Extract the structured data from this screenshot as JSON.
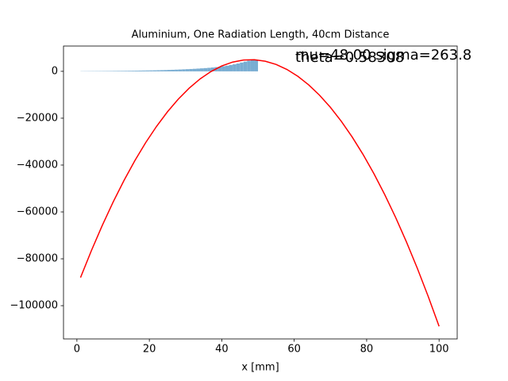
{
  "chart_data": {
    "type": "histogram+line",
    "title": "Aluminium, One Radiation Length, 40cm Distance",
    "xlabel": "x [mm]",
    "xlim": [
      -3.7,
      105
    ],
    "ylim": [
      -114200,
      10800
    ],
    "xticks": [
      0,
      20,
      40,
      60,
      80,
      100
    ],
    "yticks": [
      {
        "value": 0,
        "label": "0"
      },
      {
        "value": -20000,
        "label": "−20000"
      },
      {
        "value": -40000,
        "label": "−40000"
      },
      {
        "value": -60000,
        "label": "−60000"
      },
      {
        "value": -80000,
        "label": "−80000"
      },
      {
        "value": -100000,
        "label": "−100000"
      }
    ],
    "histogram": {
      "color": "#79add2",
      "bins": [
        1,
        2,
        3,
        4,
        5,
        6,
        7,
        8,
        9,
        10,
        11,
        12,
        13,
        14,
        15,
        16,
        17,
        18,
        19,
        20,
        21,
        22,
        23,
        24,
        25,
        26,
        27,
        28,
        29,
        30,
        31,
        32,
        33,
        34,
        35,
        36,
        37,
        38,
        39,
        40,
        41,
        42,
        43,
        44,
        45,
        46,
        47,
        48,
        49,
        50
      ],
      "counts": [
        80,
        90,
        100,
        110,
        120,
        130,
        140,
        150,
        160,
        180,
        200,
        210,
        230,
        250,
        270,
        290,
        320,
        350,
        380,
        410,
        440,
        480,
        520,
        560,
        610,
        660,
        720,
        780,
        850,
        920,
        1000,
        1080,
        1170,
        1270,
        1380,
        1500,
        1640,
        1800,
        1980,
        2180,
        2420,
        2700,
        3000,
        3350,
        3750,
        4150,
        4550,
        4850,
        5000
      ]
    },
    "curve": {
      "color": "#ff0000",
      "x": [
        1,
        4,
        7,
        10,
        13,
        16,
        19,
        22,
        25,
        28,
        31,
        34,
        37,
        40,
        43,
        46,
        49,
        52,
        55,
        58,
        61,
        64,
        67,
        70,
        73,
        76,
        79,
        82,
        85,
        88,
        91,
        94,
        97,
        100
      ],
      "values": [
        -88000,
        -76506,
        -65770,
        -55792,
        -46573,
        -38110,
        -30406,
        -23460,
        -17271,
        -11840,
        -7167,
        -3252,
        -94,
        2306,
        3947,
        4832,
        4958,
        4326,
        2937,
        790,
        -2115,
        -5778,
        -10198,
        -15376,
        -21313,
        -28006,
        -35458,
        -43668,
        -52635,
        -62360,
        -72843,
        -84084,
        -96082,
        -108838
      ]
    },
    "annotations": [
      "mu=48.00 sigma=263.8",
      "theta=0.58308"
    ]
  }
}
